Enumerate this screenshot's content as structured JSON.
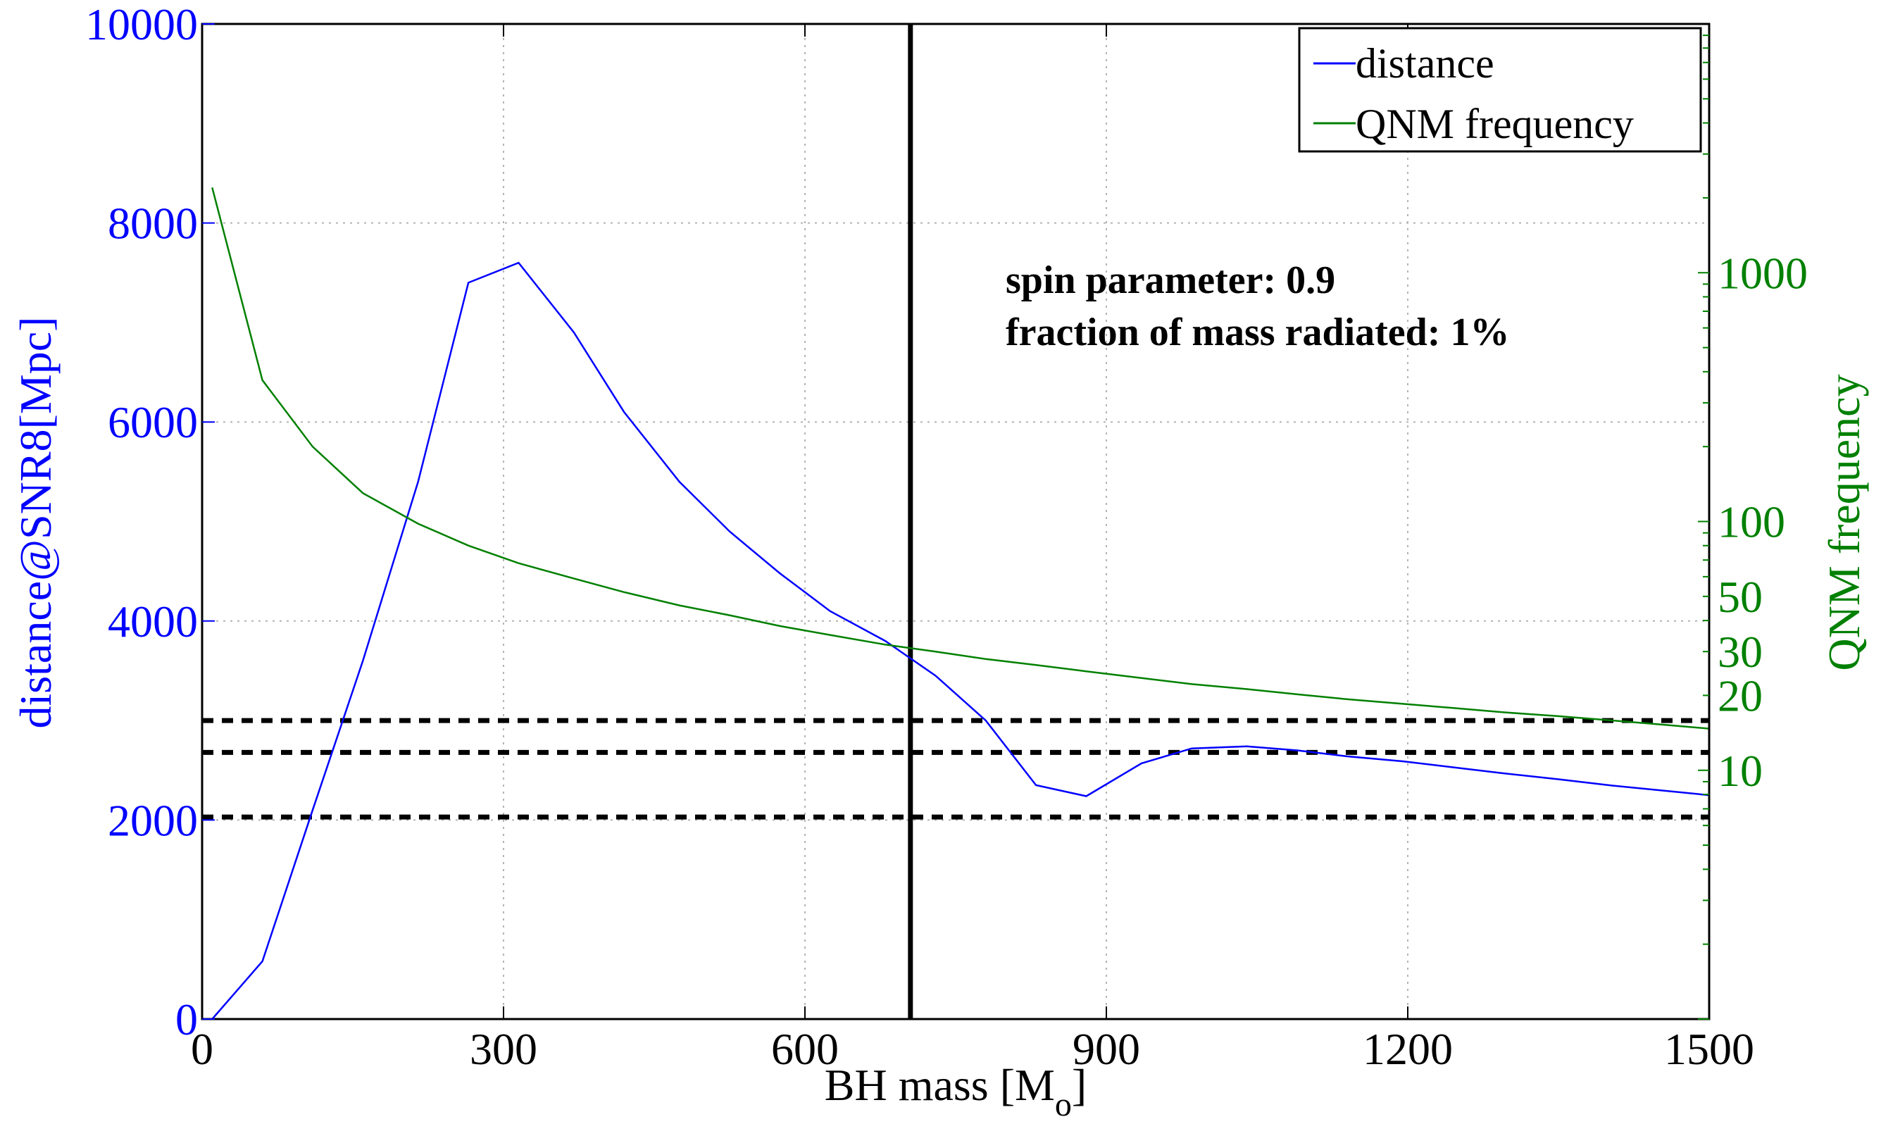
{
  "colors": {
    "distance": "#0000ff",
    "qnm": "#008000",
    "threshold": "#000000",
    "grid": "#b4b4b4"
  },
  "chart_data": {
    "type": "line",
    "xlabel": "BH mass [M",
    "xlabel_subscript": "o",
    "xlabel_suffix": "]",
    "ylabel_left": "distance@SNR8[Mpc]",
    "ylabel_right": "QNM frequency",
    "xlim": [
      0,
      1500
    ],
    "ylim_left": [
      0,
      10000
    ],
    "ylim_right": [
      1,
      10000
    ],
    "right_axis_scale": "log",
    "grid": true,
    "legend_position": "top-right",
    "x_ticks": [
      "0",
      "300",
      "600",
      "900",
      "1200",
      "1500"
    ],
    "x_tick_values": [
      0,
      300,
      600,
      900,
      1200,
      1500
    ],
    "y_left_ticks": [
      "0",
      "2000",
      "4000",
      "6000",
      "8000",
      "10000"
    ],
    "y_left_tick_values": [
      0,
      2000,
      4000,
      6000,
      8000,
      10000
    ],
    "y_right_ticks": [
      "10",
      "20",
      "30",
      "50",
      "100",
      "1000"
    ],
    "y_right_tick_values": [
      10,
      20,
      30,
      50,
      100,
      1000
    ],
    "series": [
      {
        "name": "distance",
        "axis": "left",
        "x": [
          10,
          60,
          110,
          160,
          215,
          265,
          315,
          370,
          420,
          475,
          525,
          575,
          625,
          680,
          730,
          780,
          830,
          880,
          935,
          985,
          1040,
          1090,
          1140,
          1195,
          1245,
          1295,
          1350,
          1400,
          1450,
          1500
        ],
        "y": [
          0,
          580,
          2100,
          3600,
          5400,
          7400,
          7600,
          6900,
          6100,
          5400,
          4900,
          4480,
          4100,
          3800,
          3450,
          3000,
          2350,
          2240,
          2570,
          2720,
          2740,
          2700,
          2640,
          2590,
          2530,
          2470,
          2410,
          2350,
          2300,
          2250
        ]
      },
      {
        "name": "QNM frequency",
        "axis": "right",
        "x": [
          10,
          60,
          110,
          160,
          215,
          265,
          315,
          370,
          420,
          475,
          525,
          575,
          625,
          680,
          730,
          780,
          830,
          880,
          935,
          985,
          1040,
          1090,
          1140,
          1195,
          1245,
          1295,
          1350,
          1400,
          1450,
          1500
        ],
        "y": [
          2200,
          370,
          200,
          130,
          98,
          80,
          68,
          59,
          52,
          46,
          42,
          38,
          35,
          32,
          30,
          28,
          26.5,
          25,
          23.5,
          22.2,
          21.2,
          20.2,
          19.3,
          18.5,
          17.8,
          17.1,
          16.5,
          15.9,
          15.3,
          14.7
        ]
      }
    ],
    "reference_lines": {
      "vertical_x": 705,
      "horizontal_dashed_y": [
        3000,
        2680,
        2030
      ]
    },
    "legend": [
      "distance",
      "QNM frequency"
    ],
    "annotations": [
      "spin parameter: 0.9",
      "fraction of mass radiated: 1%"
    ]
  }
}
